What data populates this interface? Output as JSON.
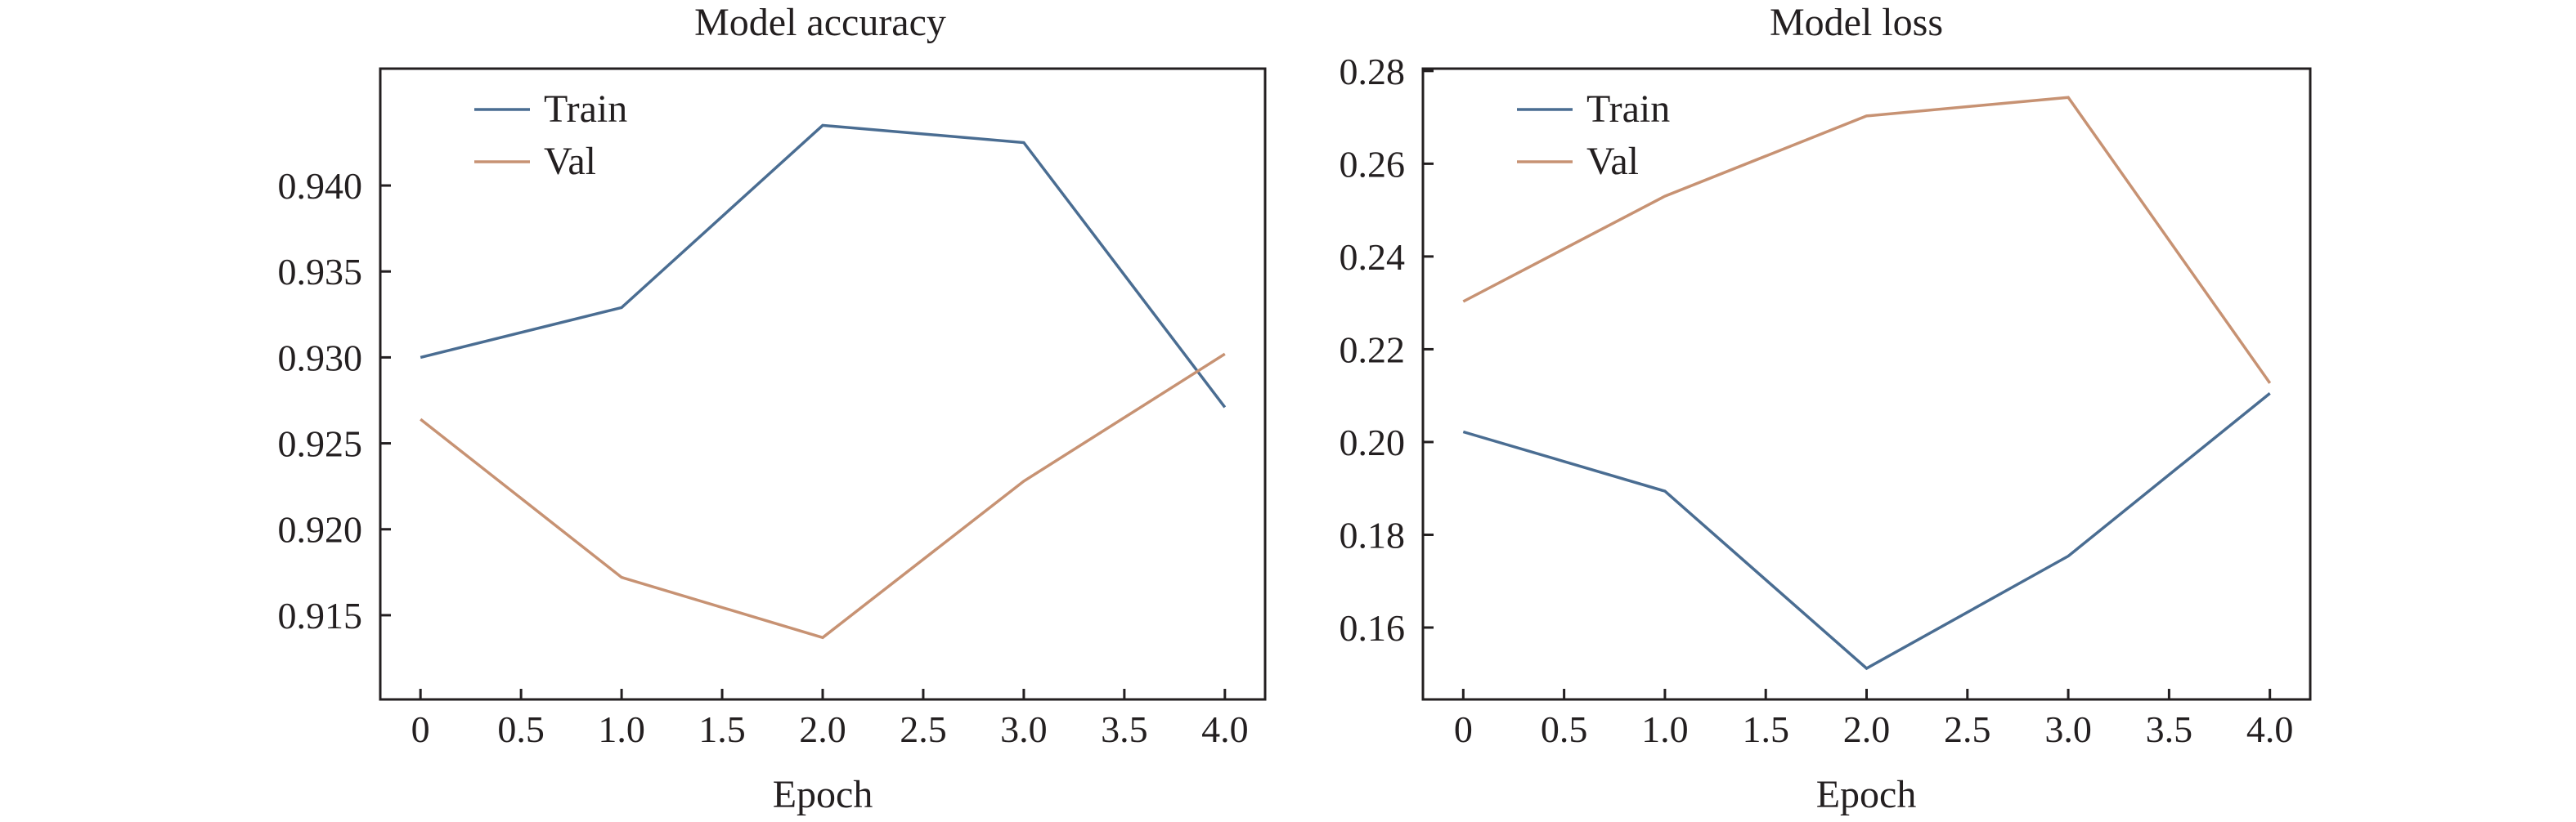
{
  "figure": {
    "background": "#ffffff",
    "text_color": "#231f20"
  },
  "chart_data": [
    {
      "type": "line",
      "title": "Model accuracy",
      "xlabel": "Epoch",
      "ylabel": "",
      "x": [
        0,
        1,
        2,
        3,
        4
      ],
      "xlim": [
        -0.2,
        4.2
      ],
      "ylim": [
        0.9101,
        0.9468
      ],
      "xticks": [
        0,
        0.5,
        1,
        1.5,
        2,
        2.5,
        3,
        3.5,
        4
      ],
      "xtick_labels": [
        "0",
        "0.5",
        "1.0",
        "1.5",
        "2.0",
        "2.5",
        "3.0",
        "3.5",
        "4.0"
      ],
      "yticks": [
        0.915,
        0.92,
        0.925,
        0.93,
        0.935,
        0.94
      ],
      "ytick_labels": [
        "0.915",
        "0.920",
        "0.925",
        "0.930",
        "0.935",
        "0.940"
      ],
      "grid": false,
      "legend_position": "top-left",
      "series": [
        {
          "name": "Train",
          "color": "#4a6d92",
          "values": [
            0.93,
            0.9329,
            0.9435,
            0.9425,
            0.9271
          ]
        },
        {
          "name": "Val",
          "color": "#c79273",
          "values": [
            0.9264,
            0.9172,
            0.9137,
            0.9228,
            0.9302
          ]
        }
      ]
    },
    {
      "type": "line",
      "title": "Model loss",
      "xlabel": "Epoch",
      "ylabel": "",
      "x": [
        0,
        1,
        2,
        3,
        4
      ],
      "xlim": [
        -0.2,
        4.2
      ],
      "ylim": [
        0.1445,
        0.2805
      ],
      "xticks": [
        0,
        0.5,
        1,
        1.5,
        2,
        2.5,
        3,
        3.5,
        4
      ],
      "xtick_labels": [
        "0",
        "0.5",
        "1.0",
        "1.5",
        "2.0",
        "2.5",
        "3.0",
        "3.5",
        "4.0"
      ],
      "yticks": [
        0.16,
        0.18,
        0.2,
        0.22,
        0.24,
        0.26,
        0.28
      ],
      "ytick_labels": [
        "0.16",
        "0.18",
        "0.20",
        "0.22",
        "0.24",
        "0.26",
        "0.28"
      ],
      "grid": false,
      "legend_position": "top-left",
      "series": [
        {
          "name": "Train",
          "color": "#4a6d92",
          "values": [
            0.2022,
            0.1894,
            0.1512,
            0.1754,
            0.2105
          ]
        },
        {
          "name": "Val",
          "color": "#c79273",
          "values": [
            0.2303,
            0.253,
            0.2703,
            0.2743,
            0.2127
          ]
        }
      ]
    }
  ]
}
